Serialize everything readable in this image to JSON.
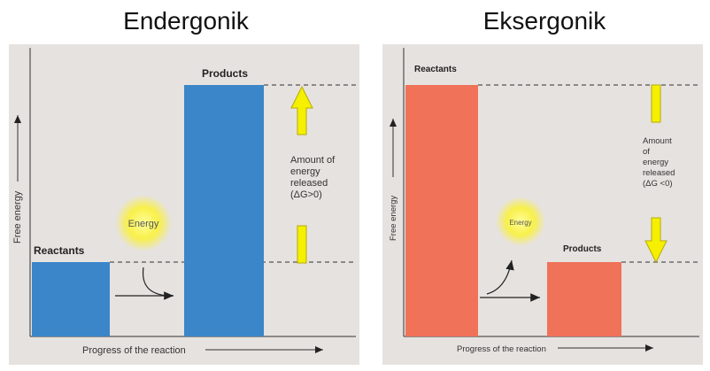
{
  "titles": {
    "left": "Endergonik",
    "right": "Eksergonik"
  },
  "left_panel": {
    "y_axis_label": "Free energy",
    "x_axis_label": "Progress of the reaction",
    "reactants_label": "Reactants",
    "products_label": "Products",
    "energy_label": "Energy",
    "amount_lines": [
      "Amount of",
      "energy",
      "released",
      "(ΔG>0)"
    ],
    "reactants_color": "#3a86c9",
    "products_color": "#3a86c9",
    "arrow_color": "#f5f000"
  },
  "right_panel": {
    "y_axis_label": "Free energy",
    "x_axis_label": "Progress of the reaction",
    "reactants_label": "Reactants",
    "products_label": "Products",
    "energy_label": "Energy",
    "amount_lines": [
      "Amount",
      "of",
      "energy",
      "released",
      "(ΔG <0)"
    ],
    "reactants_color": "#f07258",
    "products_color": "#f07258",
    "arrow_color": "#f5f000"
  }
}
